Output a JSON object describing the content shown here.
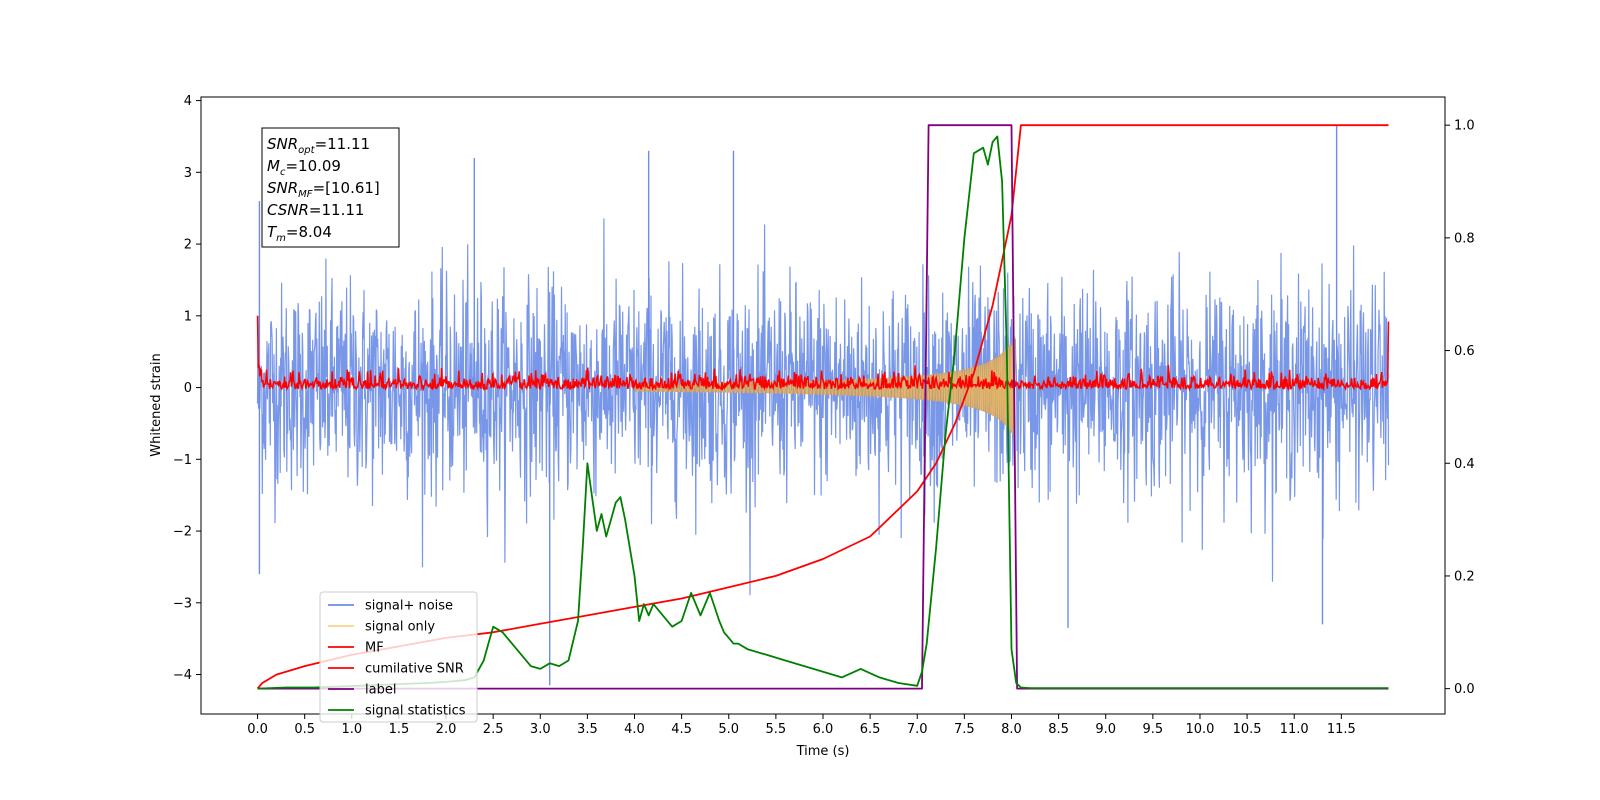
{
  "chart_data": {
    "type": "line",
    "title": "",
    "xlabel": "Time (s)",
    "ylabel": "Whitened strain",
    "y2label": "",
    "xlim": [
      -0.6,
      12.6
    ],
    "ylim": [
      -4.55,
      4.05
    ],
    "y2lim": [
      -0.045,
      1.05
    ],
    "x_ticks": [
      0.0,
      0.5,
      1.0,
      1.5,
      2.0,
      2.5,
      3.0,
      3.5,
      4.0,
      4.5,
      5.0,
      5.5,
      6.0,
      6.5,
      7.0,
      7.5,
      8.0,
      8.5,
      9.0,
      9.5,
      10.0,
      10.5,
      11.0,
      11.5
    ],
    "x_tick_labels": [
      "0.0",
      "0.5",
      "1.0",
      "1.5",
      "2.0",
      "2.5",
      "3.0",
      "3.5",
      "4.0",
      "4.5",
      "5.0",
      "5.5",
      "6.0",
      "6.5",
      "7.0",
      "7.5",
      "8.0",
      "8.5",
      "9.0",
      "9.5",
      "10.0",
      "10.5",
      "11.0",
      "11.5"
    ],
    "y_ticks": [
      4,
      3,
      2,
      1,
      0,
      -1,
      -2,
      -3,
      -4
    ],
    "y_tick_labels": [
      "4",
      "3",
      "2",
      "1",
      "0",
      "−1",
      "−2",
      "−3",
      "−4"
    ],
    "y2_ticks": [
      1.0,
      0.8,
      0.6,
      0.4,
      0.2,
      0.0
    ],
    "y2_tick_labels": [
      "1.0",
      "0.8",
      "0.6",
      "0.4",
      "0.2",
      "0.0"
    ],
    "grid": false,
    "legend_position": "lower-left",
    "colors": {
      "signal_noise": "#6e8ee6",
      "signal_only": "#f5c15a",
      "mf": "#ff0000",
      "cumulative_snr": "#ff0000",
      "label": "#800080",
      "signal_statistics": "#008000"
    },
    "annotation": {
      "lines": [
        {
          "main": "SNR",
          "sub": "opt",
          "value": "=11.11"
        },
        {
          "main": "M",
          "sub": "c",
          "value": "=10.09"
        },
        {
          "main": "SNR",
          "sub": "MF",
          "value": "=[10.61]"
        },
        {
          "main": "CSNR",
          "sub": "",
          "value": "=11.11"
        },
        {
          "main": "T",
          "sub": "m",
          "value": "=8.04"
        }
      ]
    },
    "series": [
      {
        "name": "signal+ noise",
        "axis": "left",
        "kind": "noise",
        "x_range": [
          0.0,
          12.0
        ],
        "std": 0.72,
        "spikes": [
          {
            "x": 0.02,
            "y": 2.6
          },
          {
            "x": 0.02,
            "y": -2.6
          },
          {
            "x": 2.3,
            "y": 3.2
          },
          {
            "x": 3.1,
            "y": -4.15
          },
          {
            "x": 4.15,
            "y": 3.3
          },
          {
            "x": 5.05,
            "y": 3.3
          },
          {
            "x": 8.6,
            "y": -3.35
          },
          {
            "x": 11.45,
            "y": 3.65
          },
          {
            "x": 11.3,
            "y": -3.3
          }
        ]
      },
      {
        "name": "signal only",
        "axis": "left",
        "kind": "chirp",
        "x_range": [
          4.0,
          8.04
        ],
        "amplitude_end": 0.72,
        "cutoff": 8.04
      },
      {
        "name": "MF",
        "axis": "left",
        "kind": "noise",
        "x_range": [
          0.0,
          12.0
        ],
        "std": 0.09,
        "edges": [
          {
            "x": 0.0,
            "y": 1.0
          },
          {
            "x": 12.0,
            "y": 0.92
          }
        ]
      },
      {
        "name": "cumilative SNR",
        "axis": "right",
        "kind": "curve",
        "x": [
          0.0,
          0.05,
          0.2,
          0.5,
          1.0,
          1.5,
          2.0,
          2.5,
          3.0,
          3.5,
          4.0,
          4.5,
          5.0,
          5.5,
          6.0,
          6.5,
          7.0,
          7.2,
          7.4,
          7.6,
          7.8,
          7.9,
          8.0,
          8.05,
          8.1,
          12.0
        ],
        "y": [
          0.0,
          0.01,
          0.025,
          0.04,
          0.06,
          0.075,
          0.09,
          0.1,
          0.115,
          0.13,
          0.145,
          0.16,
          0.18,
          0.2,
          0.23,
          0.27,
          0.35,
          0.4,
          0.47,
          0.56,
          0.68,
          0.76,
          0.84,
          0.92,
          1.0,
          1.0
        ]
      },
      {
        "name": "label",
        "axis": "right",
        "kind": "step",
        "x": [
          0.0,
          7.05,
          7.12,
          8.0,
          8.06,
          12.0
        ],
        "y": [
          0.0,
          0.0,
          1.0,
          1.0,
          0.0,
          0.0
        ]
      },
      {
        "name": "signal statistics",
        "axis": "right",
        "kind": "curve",
        "x": [
          0.0,
          0.3,
          0.6,
          0.9,
          1.2,
          1.5,
          1.8,
          2.0,
          2.2,
          2.3,
          2.4,
          2.45,
          2.5,
          2.6,
          2.7,
          2.8,
          2.9,
          3.0,
          3.1,
          3.2,
          3.3,
          3.4,
          3.45,
          3.5,
          3.55,
          3.6,
          3.65,
          3.7,
          3.75,
          3.8,
          3.85,
          3.9,
          3.95,
          4.0,
          4.05,
          4.1,
          4.15,
          4.2,
          4.3,
          4.4,
          4.5,
          4.6,
          4.65,
          4.7,
          4.8,
          4.9,
          4.95,
          5.0,
          5.05,
          5.1,
          5.2,
          5.4,
          5.6,
          5.8,
          6.0,
          6.2,
          6.4,
          6.6,
          6.8,
          7.0,
          7.05,
          7.1,
          7.2,
          7.3,
          7.4,
          7.5,
          7.6,
          7.7,
          7.75,
          7.8,
          7.85,
          7.9,
          7.95,
          8.0,
          8.05,
          8.1,
          8.2,
          9.0,
          10.0,
          11.0,
          12.0
        ],
        "y": [
          0.0,
          0.002,
          0.002,
          0.004,
          0.006,
          0.008,
          0.01,
          0.012,
          0.015,
          0.02,
          0.05,
          0.08,
          0.11,
          0.1,
          0.08,
          0.06,
          0.04,
          0.035,
          0.045,
          0.04,
          0.05,
          0.12,
          0.25,
          0.4,
          0.34,
          0.28,
          0.31,
          0.27,
          0.3,
          0.33,
          0.34,
          0.3,
          0.25,
          0.2,
          0.12,
          0.15,
          0.13,
          0.15,
          0.13,
          0.11,
          0.12,
          0.17,
          0.15,
          0.13,
          0.17,
          0.12,
          0.1,
          0.09,
          0.08,
          0.08,
          0.07,
          0.06,
          0.05,
          0.04,
          0.03,
          0.02,
          0.035,
          0.02,
          0.01,
          0.005,
          0.03,
          0.08,
          0.25,
          0.45,
          0.6,
          0.8,
          0.95,
          0.96,
          0.93,
          0.97,
          0.98,
          0.9,
          0.6,
          0.07,
          0.01,
          0.002,
          0.001,
          0.001,
          0.001,
          0.001,
          0.001
        ]
      }
    ]
  }
}
